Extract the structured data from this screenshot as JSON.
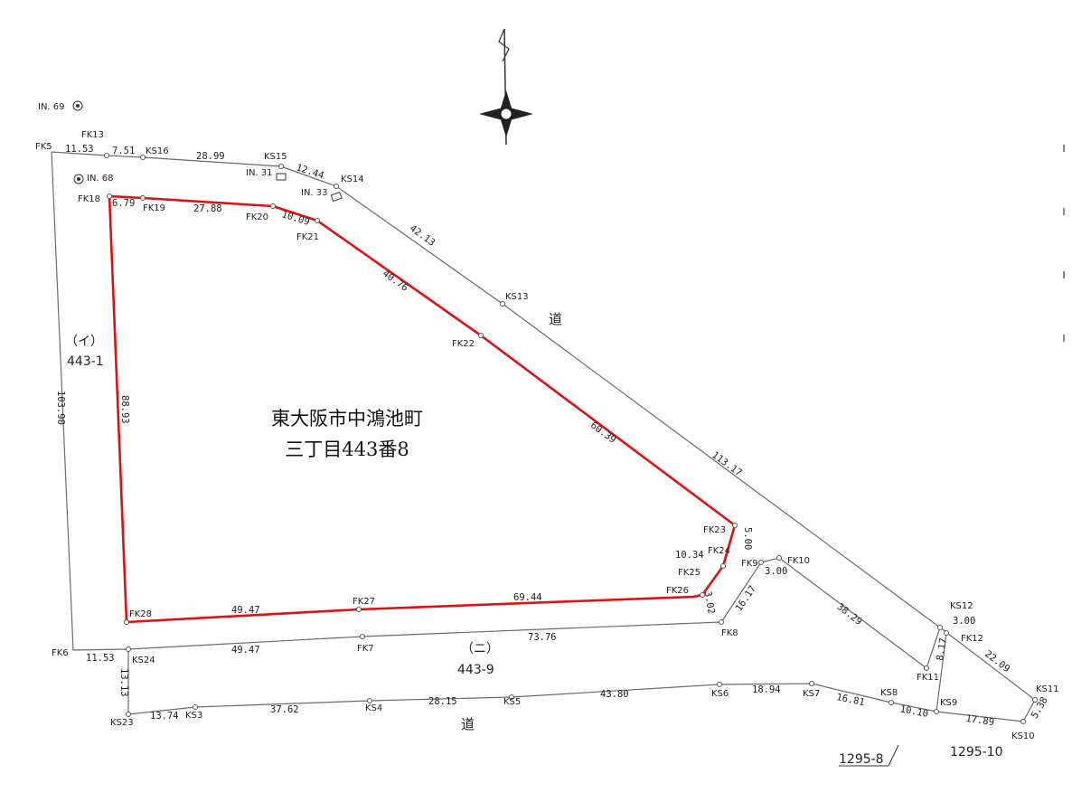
{
  "title": {
    "line1": "東大阪市中鴻池町",
    "line2": "三丁目443番8"
  },
  "parcels": {
    "i_label": "（イ）",
    "i_number": "443-1",
    "ni_label": "（ニ）",
    "ni_number": "443-9",
    "road_north": "道",
    "road_south": "道",
    "p1295_8": "1295-8",
    "p1295_10": "1295-10"
  },
  "benchmarks": [
    "IN. 69",
    "IN. 68",
    "IN. 31",
    "IN. 33"
  ],
  "points": [
    "FK5",
    "FK13",
    "KS16",
    "KS15",
    "KS14",
    "FK18",
    "FK19",
    "FK20",
    "FK21",
    "KS13",
    "FK22",
    "FK23",
    "FK24",
    "FK25",
    "FK26",
    "FK9",
    "FK10",
    "FK8",
    "FK27",
    "FK28",
    "FK6",
    "KS24",
    "FK7",
    "KS23",
    "KS3",
    "KS4",
    "KS5",
    "KS6",
    "KS7",
    "KS8",
    "KS9",
    "KS10",
    "KS11",
    "KS12",
    "FK12",
    "FK11"
  ],
  "distances": {
    "fk5_fk13": "11.53",
    "fk13_ks16": "7.51",
    "ks16_ks15": "28.99",
    "ks15_ks14": "12.44",
    "fk18_fk19": "6.79",
    "fk19_fk20": "27.88",
    "fk20_fk21": "10.09",
    "ks14_ks13": "42.13",
    "fk21_fk22": "40.76",
    "fk22_fk23": "60.39",
    "ks_long": "113.17",
    "fk23_fk24": "5.00",
    "fk24_fk25": "10.34",
    "fk25_fk26": "3.02",
    "fk9_fk10": "3.00",
    "fk8_fk9": "16.17",
    "fk10_fk11": "38.29",
    "fk11_fk12": "8.17",
    "ks12_fk12": "3.00",
    "fk12_ks11": "22.09",
    "ks11_ks10": "5.38",
    "ks9_ks10": "17.89",
    "ks8_ks9": "10.10",
    "ks7_ks8": "16.81",
    "ks6_ks7": "18.94",
    "ks5_ks6": "43.80",
    "ks4_ks5": "28.15",
    "ks3_ks4": "37.62",
    "ks23_ks3": "13.74",
    "ks24_ks23": "13.13",
    "fk6_ks24": "11.53",
    "ks24_fk7": "49.47",
    "fk7_fk8": "73.76",
    "fk28_fk27": "49.47",
    "fk27_fk26": "69.44",
    "fk18_fk28": "88.93",
    "fk5_fk6": "103.90"
  },
  "colors": {
    "subject_boundary": "#e01010",
    "lines": "#6a6a6a"
  }
}
